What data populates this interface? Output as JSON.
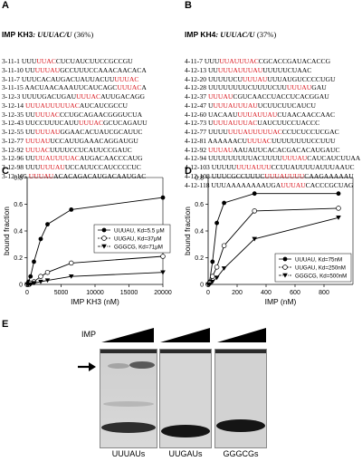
{
  "panelA": {
    "letter": "A",
    "title_prefix": "IMP KH3",
    "title_motif": ": UUUAC/U",
    "title_pct": "(36%)",
    "rows": [
      {
        "id": "3-11-1",
        "pre": "UUU",
        "hl": "UUAC",
        "post": "CUCUAUCUUCCGCCGU"
      },
      {
        "id": "3-11-10",
        "pre": "UU",
        "hl": "UUUAU",
        "post": "GCCUUUCCAAACAACACA"
      },
      {
        "id": "3-11-7",
        "pre": "UUUCACAUGACUAUUACUU",
        "hl": "UUUAC",
        "post": ""
      },
      {
        "id": "3-11-15",
        "pre": "AACUAACAAAUUCAUCAGC",
        "hl": "UUUAC",
        "post": "A"
      },
      {
        "id": "3-12-3",
        "pre": "UUUUGACUGAU",
        "hl": "UUUAC",
        "post": "AUUGACAGG"
      },
      {
        "id": "3-12-14",
        "pre": "",
        "hl": "UUUAUUUUUAC",
        "post": "AUCAUCGCCU"
      },
      {
        "id": "3-12-35",
        "pre": "UU",
        "hl": "UUUAC",
        "post": "CCUGCAGAACGGGUCUA"
      },
      {
        "id": "3-12-43",
        "pre": "UUCCUUUCAUU",
        "hl": "UUUAC",
        "post": "GCUCAGAUU"
      },
      {
        "id": "3-12-55",
        "pre": "UU",
        "hl": "UUUAU",
        "post": "GGAACACUAUCGCAUUC"
      },
      {
        "id": "3-12-77",
        "pre": "",
        "hl": "UUUAU",
        "post": "UCCAUUGAAACAGGAUGU"
      },
      {
        "id": "3-12-92",
        "pre": "",
        "hl": "UUUAC",
        "post": "UUUUCCUCAUUCCGAUC"
      },
      {
        "id": "3-12-96",
        "pre": "UU",
        "hl": "UUAUUUUAC",
        "post": "AUGACAACCCAUG"
      },
      {
        "id": "3-12-98",
        "pre": "UUU",
        "hl": "UUUAU",
        "post": "UCCAUUCCAUCCCCUC"
      },
      {
        "id": "3-12-105",
        "pre": "",
        "hl": "UUUAU",
        "post": "ACACAGACAUGACAAUGAC"
      }
    ]
  },
  "panelB": {
    "letter": "B",
    "title_prefix": "IMP KH4",
    "title_motif": ": UUUAC/U",
    "title_pct": "(37%)",
    "rows": [
      {
        "id": "4-11-7",
        "pre": "UUU",
        "hl": "UUAUUUAC",
        "post": "CGCACCGAUACACCG"
      },
      {
        "id": "4-12-13",
        "pre": "UU",
        "hl": "UUUAUUUAU",
        "post": "UUUUUCUAAC"
      },
      {
        "id": "4-12-20",
        "pre": "UUUUUCU",
        "hl": "UUUAU",
        "post": "UUUAUGUCCCCUGU"
      },
      {
        "id": "4-12-28",
        "pre": "UUUUUUUUCUUUUCUU",
        "hl": "UUUAU",
        "post": "GAU"
      },
      {
        "id": "4-12-37",
        "pre": "",
        "hl": "UUUAU",
        "post": "CGUCAACCUACCUCACGGAU"
      },
      {
        "id": "4-12-47",
        "pre": "U",
        "hl": "UUUAUUUAU",
        "post": "UCUUCUUCAUCU"
      },
      {
        "id": "4-12-60",
        "pre": "UACAAU",
        "hl": "UUUAUUAU",
        "post": "CUAACAACCAAC"
      },
      {
        "id": "4-12-73",
        "pre": "U",
        "hl": "UUUAUUUAC",
        "post": "UAUCUUCCUACCC"
      },
      {
        "id": "4-12-77",
        "pre": "UUUU",
        "hl": "UUUAUUUUUAC",
        "post": "CCUCUCCUCGAC"
      },
      {
        "id": "4-12-81",
        "pre": "AAAAAACU",
        "hl": "UUUAC",
        "post": "UUUUUUUUCCUUU"
      },
      {
        "id": "4-12-92",
        "pre": "",
        "hl": "UUUAU",
        "post": "AAUAUUCACACGACACAUGAUC"
      },
      {
        "id": "4-12-94",
        "pre": "UUUUUUUUUACUUUU",
        "hl": "UUUAU",
        "post": "CAUCAUCUUAA"
      },
      {
        "id": "4-12-103",
        "pre": "UUUUU",
        "hl": "UUUAUUU",
        "post": "CCUUAUUUUAUUUAAUC"
      },
      {
        "id": "4-12-108",
        "pre": "UUUCGCCUUUC",
        "hl": "UUUAUUUU",
        "post": "CAAGAAAAAU"
      },
      {
        "id": "4-12-118",
        "pre": "UUUAAAAAAAAUGA",
        "hl": "UUUAU",
        "post": "CACCCGCUAG"
      }
    ]
  },
  "panelC": {
    "letter": "C",
    "chart_data": {
      "type": "line",
      "xlabel": "IMP KH3 (nM)",
      "ylabel": "bound fraction",
      "xlim": [
        0,
        20000
      ],
      "ylim": [
        0,
        0.8
      ],
      "xticks": [
        0,
        5000,
        10000,
        15000,
        20000
      ],
      "yticks": [
        0,
        0.2,
        0.4,
        0.6,
        0.8
      ],
      "legend_position": "center-right",
      "series": [
        {
          "name": "UUUAU, Kd=5.5 μM",
          "marker": "circle-filled",
          "x": [
            0,
            200,
            500,
            1000,
            2000,
            3000,
            6500,
            20000
          ],
          "y": [
            0.0,
            0.02,
            0.06,
            0.17,
            0.34,
            0.45,
            0.56,
            0.65
          ]
        },
        {
          "name": "UUGAU, Kd=37μM",
          "marker": "circle-open",
          "x": [
            0,
            200,
            500,
            1000,
            2000,
            3000,
            6500,
            20000
          ],
          "y": [
            0.0,
            0.0,
            0.01,
            0.02,
            0.06,
            0.09,
            0.16,
            0.21
          ]
        },
        {
          "name": "GGGCG, Kd=71μM",
          "marker": "triangle-filled",
          "x": [
            0,
            200,
            500,
            1000,
            2000,
            3000,
            6500,
            20000
          ],
          "y": [
            0.0,
            0.0,
            0.0,
            0.01,
            0.02,
            0.03,
            0.06,
            0.09
          ]
        }
      ]
    }
  },
  "panelD": {
    "letter": "D",
    "chart_data": {
      "type": "line",
      "xlabel": "IMP (nM)",
      "ylabel": "bound fraction",
      "xlim": [
        0,
        1000
      ],
      "ylim": [
        0,
        0.8
      ],
      "xticks": [
        0,
        200,
        400,
        600,
        800
      ],
      "yticks": [
        0,
        0.2,
        0.4,
        0.6,
        0.8
      ],
      "legend_position": "bottom-right",
      "series": [
        {
          "name": "UUUAU, Kd=75nM",
          "marker": "circle-filled",
          "x": [
            0,
            10,
            30,
            60,
            110,
            320,
            900
          ],
          "y": [
            0.0,
            0.02,
            0.17,
            0.46,
            0.61,
            0.68,
            0.68
          ]
        },
        {
          "name": "UUGAU, Kd=250nM",
          "marker": "circle-open",
          "x": [
            0,
            10,
            30,
            60,
            110,
            320,
            900
          ],
          "y": [
            0.0,
            0.01,
            0.06,
            0.13,
            0.29,
            0.55,
            0.57
          ]
        },
        {
          "name": "GGGCG, Kd=500nM",
          "marker": "triangle-filled",
          "x": [
            0,
            10,
            30,
            60,
            110,
            320,
            900
          ],
          "y": [
            0.0,
            0.0,
            0.02,
            0.05,
            0.12,
            0.34,
            0.5
          ]
        }
      ]
    }
  },
  "panelE": {
    "letter": "E",
    "imp_label": "IMP",
    "lanes": [
      {
        "label": "UUUAUs"
      },
      {
        "label": "UUGAUs"
      },
      {
        "label": "GGGCGs"
      }
    ]
  }
}
